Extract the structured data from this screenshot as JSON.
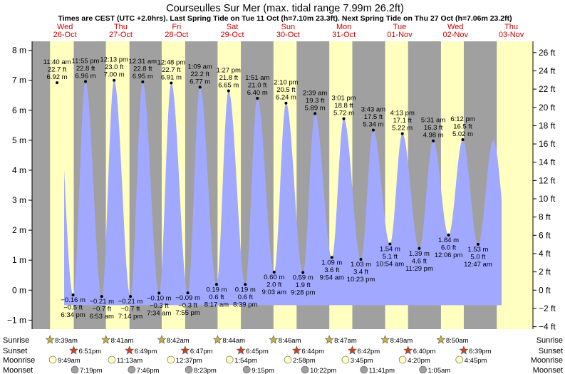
{
  "chart_data": {
    "type": "area",
    "title": "Courseulles Sur Mer (max. tidal range 7.99m 26.2ft)",
    "subtitle": "Times are CEST (UTC +2.0hrs). Last Spring Tide on Tue 11 Oct (h=7.10m 23.3ft). Next Spring Tide on Thu 27 Oct (h=7.06m 23.2ft)",
    "days": [
      {
        "dow": "Wed",
        "date": "26-Oct"
      },
      {
        "dow": "Thu",
        "date": "27-Oct"
      },
      {
        "dow": "Fri",
        "date": "28-Oct"
      },
      {
        "dow": "Sat",
        "date": "29-Oct"
      },
      {
        "dow": "Sun",
        "date": "30-Oct"
      },
      {
        "dow": "Mon",
        "date": "31-Oct"
      },
      {
        "dow": "Tue",
        "date": "01-Nov"
      },
      {
        "dow": "Wed",
        "date": "02-Nov"
      },
      {
        "dow": "Thu",
        "date": "03-Nov"
      }
    ],
    "left_axis": {
      "unit": "m",
      "ticks": [
        -1,
        0,
        1,
        2,
        3,
        4,
        5,
        6,
        7,
        8
      ],
      "labels": [
        "−1 m",
        "0 m",
        "1 m",
        "2 m",
        "3 m",
        "4 m",
        "5 m",
        "6 m",
        "7 m",
        "8 m"
      ],
      "ylim": [
        -1.3,
        8.3
      ]
    },
    "right_axis": {
      "unit": "ft",
      "ticks": [
        -4,
        -2,
        0,
        2,
        4,
        6,
        8,
        10,
        12,
        14,
        16,
        18,
        20,
        22,
        24,
        26
      ],
      "labels": [
        "−4 ft",
        "−2 ft",
        "0 ft",
        "2 ft",
        "4 ft",
        "6 ft",
        "8 ft",
        "10 ft",
        "12 ft",
        "14 ft",
        "16 ft",
        "18 ft",
        "20 ft",
        "22 ft",
        "24 ft",
        "26 ft"
      ]
    },
    "tides": [
      {
        "type": "high",
        "day": 0,
        "hour": 11.667,
        "time": "11:40 am",
        "m_label": "6.92 m",
        "ft_label": "22.7 ft",
        "height": 6.92
      },
      {
        "type": "low",
        "day": 0,
        "hour": 18.567,
        "time": "6:34 pm",
        "m_label": "−0.16 m",
        "ft_label": "−0.5 ft",
        "height": -0.16
      },
      {
        "type": "high",
        "day": 0,
        "hour": 23.917,
        "time": "11:55 pm",
        "m_label": "6.96 m",
        "ft_label": "22.8 ft",
        "height": 6.96
      },
      {
        "type": "low",
        "day": 1,
        "hour": 6.883,
        "time": "6:53 am",
        "m_label": "−0.21 m",
        "ft_label": "−0.7 ft",
        "height": -0.21
      },
      {
        "type": "high",
        "day": 1,
        "hour": 12.217,
        "time": "12:13 pm",
        "m_label": "7.00 m",
        "ft_label": "23.0 ft",
        "height": 7.0
      },
      {
        "type": "low",
        "day": 1,
        "hour": 19.233,
        "time": "7:14 pm",
        "m_label": "−0.21 m",
        "ft_label": "−0.7 ft",
        "height": -0.21
      },
      {
        "type": "high",
        "day": 2,
        "hour": 0.517,
        "time": "12:31 am",
        "m_label": "6.95 m",
        "ft_label": "22.8 ft",
        "height": 6.95
      },
      {
        "type": "low",
        "day": 2,
        "hour": 7.567,
        "time": "7:34 am",
        "m_label": "−0.10 m",
        "ft_label": "−0.3 ft",
        "height": -0.1
      },
      {
        "type": "high",
        "day": 2,
        "hour": 12.8,
        "time": "12:48 pm",
        "m_label": "6.91 m",
        "ft_label": "22.7 ft",
        "height": 6.91
      },
      {
        "type": "low",
        "day": 2,
        "hour": 19.917,
        "time": "7:55 pm",
        "m_label": "−0.09 m",
        "ft_label": "−0.3 ft",
        "height": -0.09
      },
      {
        "type": "high",
        "day": 3,
        "hour": 1.15,
        "time": "1:09 am",
        "m_label": "6.77 m",
        "ft_label": "22.2 ft",
        "height": 6.77
      },
      {
        "type": "low",
        "day": 3,
        "hour": 8.283,
        "time": "8:17 am",
        "m_label": "0.19 m",
        "ft_label": "0.6 ft",
        "height": 0.19
      },
      {
        "type": "high",
        "day": 3,
        "hour": 13.45,
        "time": "1:27 pm",
        "m_label": "6.65 m",
        "ft_label": "21.8 ft",
        "height": 6.65
      },
      {
        "type": "low",
        "day": 3,
        "hour": 20.65,
        "time": "8:39 pm",
        "m_label": "0.19 m",
        "ft_label": "0.6 ft",
        "height": 0.19
      },
      {
        "type": "high",
        "day": 4,
        "hour": 1.85,
        "time": "1:51 am",
        "m_label": "6.40 m",
        "ft_label": "21.0 ft",
        "height": 6.4
      },
      {
        "type": "low",
        "day": 4,
        "hour": 9.05,
        "time": "9:03 am",
        "m_label": "0.60 m",
        "ft_label": "2.0 ft",
        "height": 0.6
      },
      {
        "type": "high",
        "day": 4,
        "hour": 14.167,
        "time": "2:10 pm",
        "m_label": "6.24 m",
        "ft_label": "20.5 ft",
        "height": 6.24
      },
      {
        "type": "low",
        "day": 4,
        "hour": 21.467,
        "time": "9:28 pm",
        "m_label": "0.59 m",
        "ft_label": "1.9 ft",
        "height": 0.59
      },
      {
        "type": "high",
        "day": 5,
        "hour": 2.65,
        "time": "2:39 am",
        "m_label": "5.89 m",
        "ft_label": "19.3 ft",
        "height": 5.89
      },
      {
        "type": "low",
        "day": 5,
        "hour": 9.9,
        "time": "9:54 am",
        "m_label": "1.09 m",
        "ft_label": "3.6 ft",
        "height": 1.09
      },
      {
        "type": "high",
        "day": 5,
        "hour": 15.017,
        "time": "3:01 pm",
        "m_label": "5.72 m",
        "ft_label": "18.8 ft",
        "height": 5.72
      },
      {
        "type": "low",
        "day": 5,
        "hour": 22.383,
        "time": "10:23 pm",
        "m_label": "1.03 m",
        "ft_label": "3.4 ft",
        "height": 1.03
      },
      {
        "type": "high",
        "day": 6,
        "hour": 3.717,
        "time": "3:43 am",
        "m_label": "5.34 m",
        "ft_label": "17.5 ft",
        "height": 5.34
      },
      {
        "type": "low",
        "day": 6,
        "hour": 10.9,
        "time": "10:54 am",
        "m_label": "1.54 m",
        "ft_label": "5.1 ft",
        "height": 1.54
      },
      {
        "type": "high",
        "day": 6,
        "hour": 16.217,
        "time": "4:13 pm",
        "m_label": "5.22 m",
        "ft_label": "17.1 ft",
        "height": 5.22
      },
      {
        "type": "low",
        "day": 6,
        "hour": 23.483,
        "time": "11:29 pm",
        "m_label": "1.39 m",
        "ft_label": "4.6 ft",
        "height": 1.39
      },
      {
        "type": "high",
        "day": 7,
        "hour": 5.517,
        "time": "5:31 am",
        "m_label": "4.98 m",
        "ft_label": "16.3 ft",
        "height": 4.98
      },
      {
        "type": "low",
        "day": 7,
        "hour": 12.1,
        "time": "12:06 pm",
        "m_label": "1.84 m",
        "ft_label": "6.0 ft",
        "height": 1.84
      },
      {
        "type": "high",
        "day": 7,
        "hour": 18.2,
        "time": "6:12 pm",
        "m_label": "5.02 m",
        "ft_label": "16.5 ft",
        "height": 5.02
      },
      {
        "type": "low",
        "day": 8,
        "hour": 0.783,
        "time": "12:47 am",
        "m_label": "1.53 m",
        "ft_label": "5.0 ft",
        "height": 1.53
      }
    ],
    "day_start_hours": [
      0,
      7.0,
      -6.5,
      -0.67
    ],
    "sun_moon": {
      "row_labels": {
        "sunrise": "Sunrise",
        "sunset": "Sunset",
        "moonrise": "Moonrise",
        "moonset": "Moonset"
      },
      "sunrise": [
        {
          "day": 0,
          "time": "8:39am",
          "hour": 8.65
        },
        {
          "day": 1,
          "time": "8:41am",
          "hour": 8.683
        },
        {
          "day": 2,
          "time": "8:42am",
          "hour": 8.7
        },
        {
          "day": 3,
          "time": "8:44am",
          "hour": 8.733
        },
        {
          "day": 4,
          "time": "8:46am",
          "hour": 8.767
        },
        {
          "day": 5,
          "time": "8:47am",
          "hour": 8.783
        },
        {
          "day": 6,
          "time": "8:49am",
          "hour": 8.817
        },
        {
          "day": 7,
          "time": "8:50am",
          "hour": 8.833
        }
      ],
      "sunset": [
        {
          "day": 0,
          "time": "6:51pm",
          "hour": 18.85
        },
        {
          "day": 1,
          "time": "6:49pm",
          "hour": 18.817
        },
        {
          "day": 2,
          "time": "6:47pm",
          "hour": 18.783
        },
        {
          "day": 3,
          "time": "6:45pm",
          "hour": 18.75
        },
        {
          "day": 4,
          "time": "6:44pm",
          "hour": 18.733
        },
        {
          "day": 5,
          "time": "6:42pm",
          "hour": 18.7
        },
        {
          "day": 6,
          "time": "6:40pm",
          "hour": 18.667
        },
        {
          "day": 7,
          "time": "6:39pm",
          "hour": 18.65
        }
      ],
      "moonrise": [
        {
          "day": 0,
          "time": "9:49am",
          "hour": 9.817
        },
        {
          "day": 1,
          "time": "11:13am",
          "hour": 11.217
        },
        {
          "day": 2,
          "time": "12:37pm",
          "hour": 12.617
        },
        {
          "day": 3,
          "time": "1:54pm",
          "hour": 13.9
        },
        {
          "day": 4,
          "time": "2:58pm",
          "hour": 14.967
        },
        {
          "day": 5,
          "time": "3:45pm",
          "hour": 15.75
        },
        {
          "day": 6,
          "time": "4:20pm",
          "hour": 16.333
        },
        {
          "day": 7,
          "time": "4:45pm",
          "hour": 16.75
        }
      ],
      "moonset": [
        {
          "day": 0,
          "time": "7:19pm",
          "hour": 19.317
        },
        {
          "day": 1,
          "time": "7:46pm",
          "hour": 19.767
        },
        {
          "day": 2,
          "time": "8:23pm",
          "hour": 20.383
        },
        {
          "day": 3,
          "time": "9:15pm",
          "hour": 21.25
        },
        {
          "day": 4,
          "time": "10:22pm",
          "hour": 22.367
        },
        {
          "day": 5,
          "time": "11:41pm",
          "hour": 23.683
        },
        {
          "day": 7,
          "time": "1:05am",
          "hour": 1.083
        }
      ]
    },
    "colors": {
      "night": "#a0a0a0",
      "day": "#ffffc0",
      "water": "#a0a8ff",
      "sunrise": "#c8b040",
      "sunset": "#d04020",
      "moonrise": "#ffffc0",
      "moonset": "#a0a0a0",
      "daylabel": "#cc0000"
    }
  }
}
